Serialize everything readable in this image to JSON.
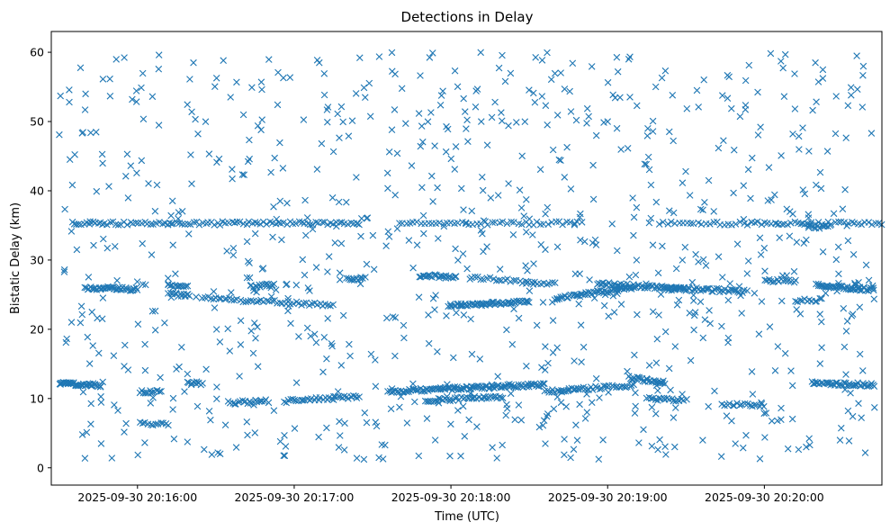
{
  "chart_data": {
    "type": "scatter",
    "title": "Detections in Delay",
    "xlabel": "Time (UTC)",
    "ylabel": "Bistatic Delay (km)",
    "x_ticks": [
      "2025-09-30 20:16:00",
      "2025-09-30 20:17:00",
      "2025-09-30 20:18:00",
      "2025-09-30 20:19:00",
      "2025-09-30 20:20:00"
    ],
    "y_ticks": [
      "0",
      "10",
      "20",
      "30",
      "40",
      "50",
      "60"
    ],
    "x_tick_seconds": [
      960,
      1020,
      1080,
      1140,
      1200
    ],
    "y_tick_values": [
      0,
      10,
      20,
      30,
      40,
      50,
      60
    ],
    "xlim_seconds_after_20_00": [
      927,
      1245
    ],
    "ylim": [
      -2.5,
      63
    ],
    "marker": "x",
    "marker_color": "#1f77b4",
    "grid": false,
    "legend": "none",
    "random_points": 900,
    "tracks": [
      {
        "t0": 930,
        "t1": 946,
        "y0": 12.2,
        "y1": 11.9,
        "n": 40
      },
      {
        "t0": 961,
        "t1": 969,
        "y0": 11.0,
        "y1": 11.0,
        "n": 14
      },
      {
        "t0": 961,
        "t1": 972,
        "y0": 6.4,
        "y1": 6.2,
        "n": 12
      },
      {
        "t0": 979,
        "t1": 985,
        "y0": 12.2,
        "y1": 12.2,
        "n": 10
      },
      {
        "t0": 995,
        "t1": 1010,
        "y0": 9.4,
        "y1": 9.6,
        "n": 22
      },
      {
        "t0": 1016,
        "t1": 1045,
        "y0": 9.6,
        "y1": 10.3,
        "n": 36
      },
      {
        "t0": 1056,
        "t1": 1116,
        "y0": 11.0,
        "y1": 12.0,
        "n": 110
      },
      {
        "t0": 1070,
        "t1": 1100,
        "y0": 9.7,
        "y1": 10.3,
        "n": 40
      },
      {
        "t0": 1116,
        "t1": 1150,
        "y0": 11.0,
        "y1": 11.9,
        "n": 45
      },
      {
        "t0": 1148,
        "t1": 1162,
        "y0": 13.0,
        "y1": 12.3,
        "n": 26
      },
      {
        "t0": 1155,
        "t1": 1170,
        "y0": 10.0,
        "y1": 9.8,
        "n": 20
      },
      {
        "t0": 1184,
        "t1": 1200,
        "y0": 9.2,
        "y1": 9.0,
        "n": 18
      },
      {
        "t0": 1218,
        "t1": 1242,
        "y0": 12.2,
        "y1": 12.0,
        "n": 45
      },
      {
        "t0": 940,
        "t1": 960,
        "y0": 26.0,
        "y1": 25.8,
        "n": 40
      },
      {
        "t0": 972,
        "t1": 979,
        "y0": 26.2,
        "y1": 26.2,
        "n": 12
      },
      {
        "t0": 972,
        "t1": 980,
        "y0": 25.1,
        "y1": 24.8,
        "n": 14
      },
      {
        "t0": 985,
        "t1": 1035,
        "y0": 24.5,
        "y1": 23.5,
        "n": 50
      },
      {
        "t0": 1003,
        "t1": 1012,
        "y0": 26.2,
        "y1": 26.3,
        "n": 14
      },
      {
        "t0": 1040,
        "t1": 1047,
        "y0": 27.2,
        "y1": 27.3,
        "n": 12
      },
      {
        "t0": 1068,
        "t1": 1082,
        "y0": 27.8,
        "y1": 27.5,
        "n": 24
      },
      {
        "t0": 1079,
        "t1": 1110,
        "y0": 23.4,
        "y1": 24.0,
        "n": 60
      },
      {
        "t0": 1087,
        "t1": 1120,
        "y0": 27.5,
        "y1": 26.5,
        "n": 30
      },
      {
        "t0": 1120,
        "t1": 1150,
        "y0": 24.5,
        "y1": 26.0,
        "n": 50
      },
      {
        "t0": 1136,
        "t1": 1170,
        "y0": 26.6,
        "y1": 25.8,
        "n": 60
      },
      {
        "t0": 1162,
        "t1": 1192,
        "y0": 25.9,
        "y1": 25.5,
        "n": 45
      },
      {
        "t0": 1200,
        "t1": 1212,
        "y0": 27.0,
        "y1": 27.0,
        "n": 16
      },
      {
        "t0": 1220,
        "t1": 1242,
        "y0": 26.3,
        "y1": 25.7,
        "n": 48
      },
      {
        "t0": 1212,
        "t1": 1222,
        "y0": 24.2,
        "y1": 24.2,
        "n": 12
      },
      {
        "t0": 935,
        "t1": 1045,
        "y0": 35.3,
        "y1": 35.3,
        "n": 100
      },
      {
        "t0": 1060,
        "t1": 1130,
        "y0": 35.3,
        "y1": 35.3,
        "n": 50
      },
      {
        "t0": 1160,
        "t1": 1195,
        "y0": 35.3,
        "y1": 35.3,
        "n": 25
      },
      {
        "t0": 1195,
        "t1": 1245,
        "y0": 35.3,
        "y1": 35.3,
        "n": 40
      },
      {
        "t0": 1217,
        "t1": 1225,
        "y0": 34.8,
        "y1": 34.8,
        "n": 12
      }
    ]
  }
}
